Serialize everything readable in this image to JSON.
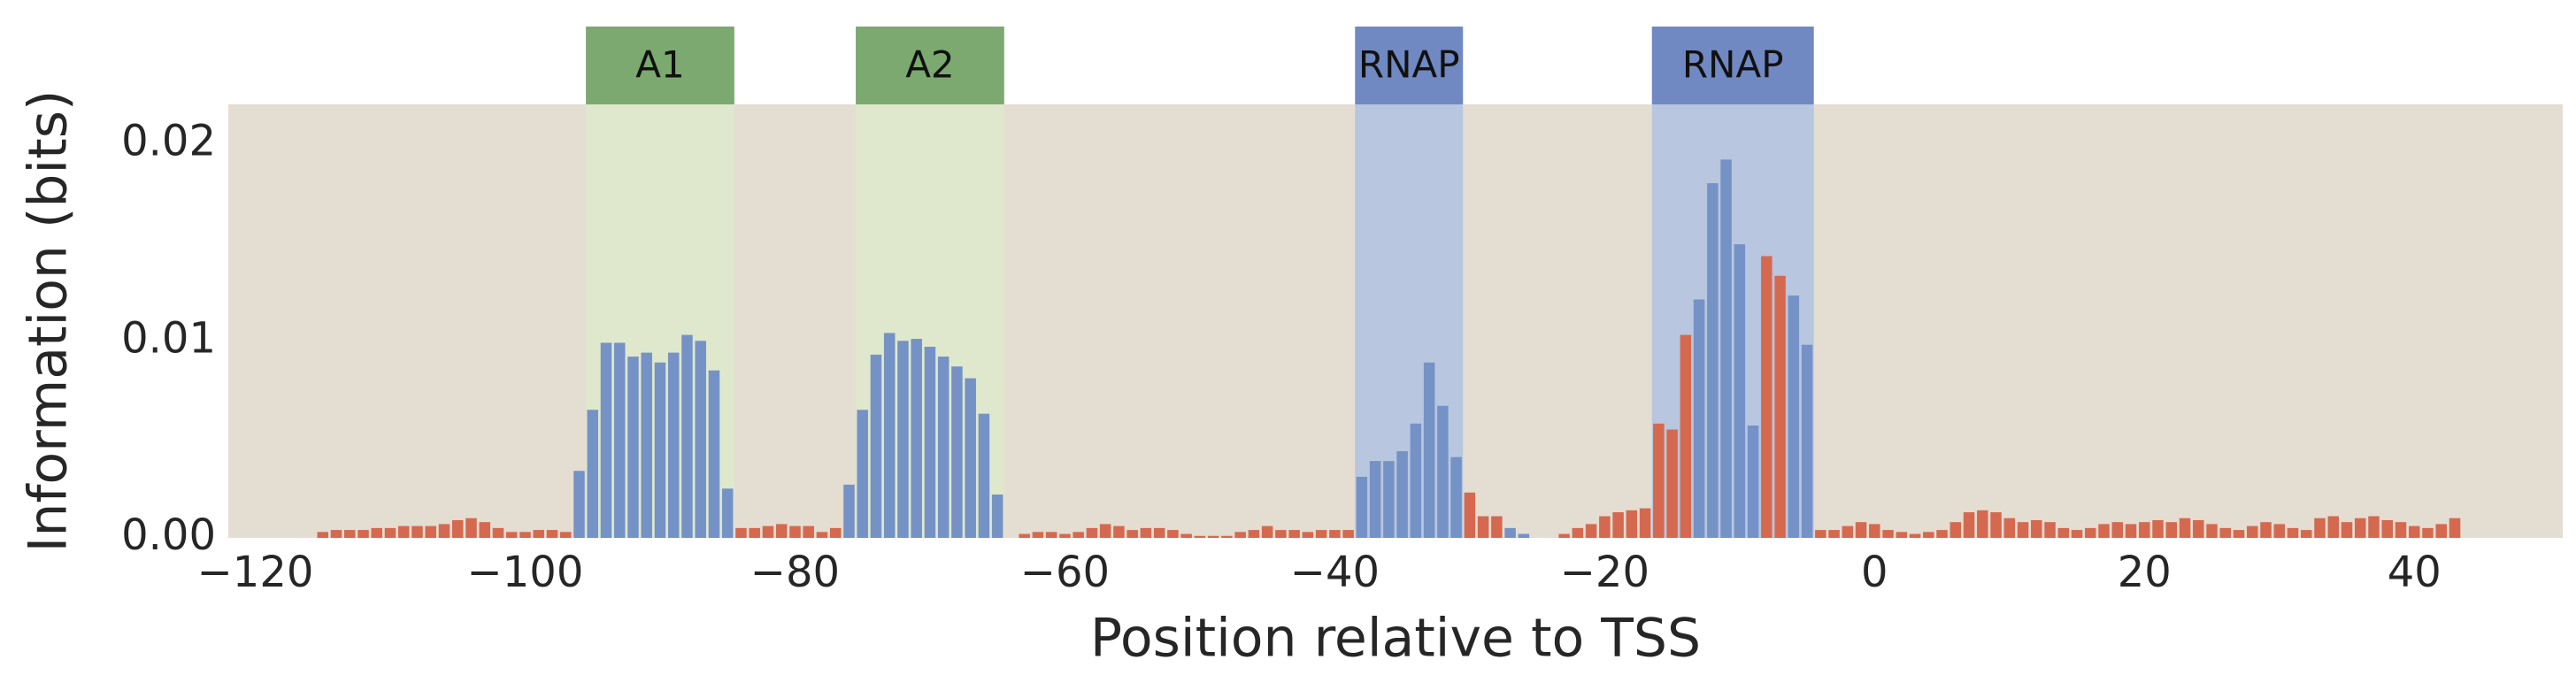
{
  "chart_data": {
    "type": "bar",
    "xlabel": "Position relative to TSS",
    "ylabel": "Information (bits)",
    "xlim": [
      -122,
      51
    ],
    "ylim": [
      0,
      0.022
    ],
    "xticks": [
      {
        "value": -120,
        "label": "−120"
      },
      {
        "value": -100,
        "label": "−100"
      },
      {
        "value": -80,
        "label": "−80"
      },
      {
        "value": -60,
        "label": "−60"
      },
      {
        "value": -40,
        "label": "−40"
      },
      {
        "value": -20,
        "label": "−20"
      },
      0,
      20,
      40
    ],
    "yticks": [
      {
        "value": 0,
        "label": "0.00"
      },
      0.01,
      0.02
    ],
    "background": "#e4ddd2",
    "regions": [
      {
        "label": "A1",
        "start": -95.5,
        "end": -84.5,
        "color": "#dfe8cc",
        "label_color": "#7ba96f"
      },
      {
        "label": "A2",
        "start": -75.5,
        "end": -64.5,
        "color": "#dfe8cc",
        "label_color": "#7ba96f"
      },
      {
        "label": "RNAP",
        "start": -38.5,
        "end": -30.5,
        "color": "#b8c6df",
        "label_color": "#7089c2"
      },
      {
        "label": "RNAP",
        "start": -16.5,
        "end": -4.5,
        "color": "#b8c6df",
        "label_color": "#7089c2"
      }
    ],
    "series": [
      {
        "color": "#7592c6",
        "x": [
          -96,
          -95,
          -94,
          -93,
          -92,
          -91,
          -90,
          -89,
          -88,
          -87,
          -86,
          -85,
          -76,
          -75,
          -74,
          -73,
          -72,
          -71,
          -70,
          -69,
          -68,
          -67,
          -66,
          -65,
          -38,
          -37,
          -36,
          -35,
          -34,
          -33,
          -32,
          -31,
          -27,
          -26,
          -13,
          -12,
          -11,
          -10,
          -9,
          -6,
          -5
        ],
        "values": [
          0.0034,
          0.0065,
          0.0099,
          0.0099,
          0.0092,
          0.0094,
          0.0089,
          0.0094,
          0.0103,
          0.01,
          0.0085,
          0.0025,
          0.0027,
          0.0065,
          0.0093,
          0.0104,
          0.01,
          0.0101,
          0.0097,
          0.0092,
          0.0087,
          0.0081,
          0.0063,
          0.0022,
          0.0031,
          0.0039,
          0.0039,
          0.0044,
          0.0058,
          0.0089,
          0.0067,
          0.0041,
          0.0005,
          0.0002,
          0.0121,
          0.018,
          0.0192,
          0.0149,
          0.0057,
          0.0123,
          0.0098
        ]
      },
      {
        "color": "#d4694f",
        "x": [
          -115,
          -114,
          -113,
          -112,
          -111,
          -110,
          -109,
          -108,
          -107,
          -106,
          -105,
          -104,
          -103,
          -102,
          -101,
          -100,
          -99,
          -98,
          -97,
          -84,
          -83,
          -82,
          -81,
          -80,
          -79,
          -78,
          -77,
          -63,
          -62,
          -61,
          -60,
          -59,
          -58,
          -57,
          -56,
          -55,
          -54,
          -53,
          -52,
          -51,
          -50,
          -49,
          -48,
          -47,
          -46,
          -45,
          -44,
          -43,
          -42,
          -41,
          -40,
          -39,
          -30,
          -29,
          -28,
          -23,
          -22,
          -21,
          -20,
          -19,
          -18,
          -17,
          -16,
          -15,
          -14,
          -8,
          -7,
          -4,
          -3,
          -2,
          -1,
          0,
          1,
          2,
          3,
          4,
          5,
          6,
          7,
          8,
          9,
          10,
          11,
          12,
          13,
          14,
          15,
          16,
          17,
          18,
          19,
          20,
          21,
          22,
          23,
          24,
          25,
          26,
          27,
          28,
          29,
          30,
          31,
          32,
          33,
          34,
          35,
          36,
          37,
          38,
          39,
          40,
          41,
          42,
          43
        ],
        "values": [
          0.0003,
          0.0004,
          0.0004,
          0.0004,
          0.0005,
          0.0005,
          0.0006,
          0.0006,
          0.0006,
          0.0007,
          0.0009,
          0.001,
          0.0008,
          0.0005,
          0.0003,
          0.0003,
          0.0004,
          0.0004,
          0.0003,
          0.0005,
          0.0005,
          0.0006,
          0.0007,
          0.0006,
          0.0006,
          0.0003,
          0.0005,
          0.0002,
          0.0003,
          0.0003,
          0.0002,
          0.0003,
          0.0005,
          0.0007,
          0.0006,
          0.0004,
          0.0005,
          0.0005,
          0.0004,
          0.0002,
          0.0001,
          0.0001,
          0.0001,
          0.0003,
          0.0004,
          0.0006,
          0.0004,
          0.0004,
          0.0003,
          0.0004,
          0.0004,
          0.0004,
          0.0023,
          0.0011,
          0.0011,
          0.0002,
          0.0005,
          0.0007,
          0.0011,
          0.0013,
          0.0014,
          0.0015,
          0.0058,
          0.0055,
          0.0103,
          0.0143,
          0.0133,
          0.0004,
          0.0004,
          0.0006,
          0.0008,
          0.0007,
          0.0004,
          0.0003,
          0.0002,
          0.0003,
          0.0004,
          0.0008,
          0.0013,
          0.0014,
          0.0013,
          0.001,
          0.0008,
          0.0009,
          0.0008,
          0.0005,
          0.0004,
          0.0005,
          0.0007,
          0.0008,
          0.0007,
          0.0008,
          0.0009,
          0.0008,
          0.001,
          0.0009,
          0.0007,
          0.0005,
          0.0004,
          0.0006,
          0.0008,
          0.0007,
          0.0005,
          0.0004,
          0.001,
          0.0011,
          0.0008,
          0.001,
          0.0011,
          0.0009,
          0.0008,
          0.0006,
          0.0005,
          0.0007,
          0.001
        ]
      }
    ]
  }
}
